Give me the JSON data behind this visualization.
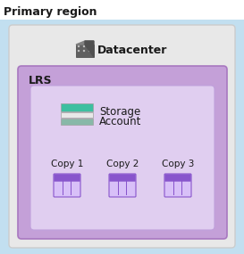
{
  "title": "Primary region",
  "title_fontsize": 9,
  "title_fontweight": "bold",
  "bg_outer_color": "#ffffff",
  "bg_blue_color": "#c2dff0",
  "datacenter_box_color": "#e8e8e8",
  "datacenter_box_edge": "#cccccc",
  "lrs_box_color": "#c4a0d8",
  "lrs_box_edge": "#a878c0",
  "inner_box_color": "#e0cef0",
  "inner_box_edge": "#c0a0dc",
  "datacenter_label": "Datacenter",
  "lrs_label": "LRS",
  "storage_label_line1": "Storage",
  "storage_label_line2": "Account",
  "copy_labels": [
    "Copy 1",
    "Copy 2",
    "Copy 3"
  ],
  "storage_bar_colors": [
    "#3dbfa0",
    "#e8e8e8",
    "#88b8a8"
  ],
  "copy_icon_purple": "#8855cc",
  "copy_icon_light": "#c8a8f0",
  "copy_icon_bg": "#d8c0f8"
}
